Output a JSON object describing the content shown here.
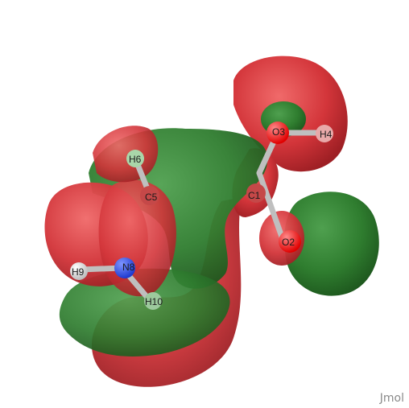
{
  "viewer": {
    "watermark": "Jmol",
    "colors": {
      "background": "#ffffff",
      "lobe_positive": "#d0363a",
      "lobe_negative": "#2f7d2f",
      "atom_carbon": "#8c8c8c",
      "atom_oxygen": "#ff0d0d",
      "atom_nitrogen": "#3050f8",
      "atom_hydrogen": "#f2f2f2"
    },
    "atoms": [
      {
        "label": "O3",
        "element": "oxygen"
      },
      {
        "label": "H4",
        "element": "hydrogen"
      },
      {
        "label": "C1",
        "element": "carbon"
      },
      {
        "label": "O2",
        "element": "oxygen"
      },
      {
        "label": "H6",
        "element": "hydrogen"
      },
      {
        "label": "C5",
        "element": "carbon"
      },
      {
        "label": "H9",
        "element": "hydrogen"
      },
      {
        "label": "N8",
        "element": "nitrogen"
      },
      {
        "label": "H10",
        "element": "hydrogen"
      }
    ]
  }
}
